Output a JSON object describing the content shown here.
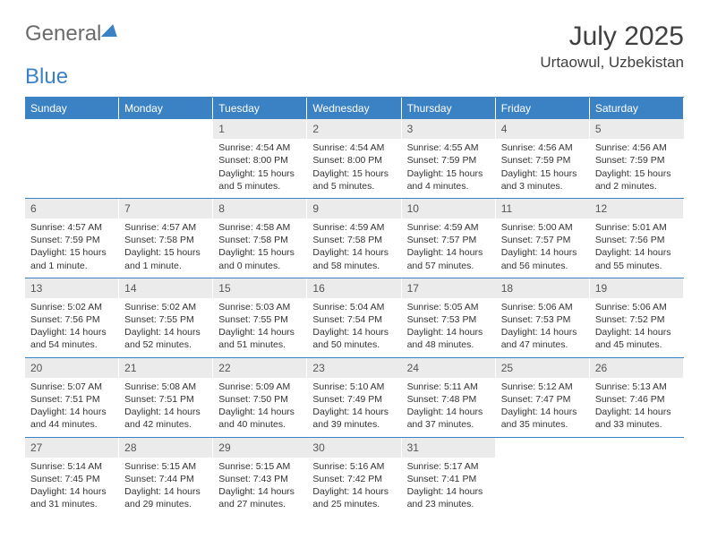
{
  "logo": {
    "part1": "General",
    "part2": "Blue"
  },
  "title": "July 2025",
  "location": "Urtaowul, Uzbekistan",
  "colors": {
    "accent": "#3b82c4",
    "dayNumBg": "#ebebeb",
    "headerText": "#ffffff",
    "bodyText": "#333333"
  },
  "dayHeaders": [
    "Sunday",
    "Monday",
    "Tuesday",
    "Wednesday",
    "Thursday",
    "Friday",
    "Saturday"
  ],
  "weeks": [
    [
      null,
      null,
      {
        "n": "1",
        "sr": "4:54 AM",
        "ss": "8:00 PM",
        "dl": "15 hours and 5 minutes."
      },
      {
        "n": "2",
        "sr": "4:54 AM",
        "ss": "8:00 PM",
        "dl": "15 hours and 5 minutes."
      },
      {
        "n": "3",
        "sr": "4:55 AM",
        "ss": "7:59 PM",
        "dl": "15 hours and 4 minutes."
      },
      {
        "n": "4",
        "sr": "4:56 AM",
        "ss": "7:59 PM",
        "dl": "15 hours and 3 minutes."
      },
      {
        "n": "5",
        "sr": "4:56 AM",
        "ss": "7:59 PM",
        "dl": "15 hours and 2 minutes."
      }
    ],
    [
      {
        "n": "6",
        "sr": "4:57 AM",
        "ss": "7:59 PM",
        "dl": "15 hours and 1 minute."
      },
      {
        "n": "7",
        "sr": "4:57 AM",
        "ss": "7:58 PM",
        "dl": "15 hours and 1 minute."
      },
      {
        "n": "8",
        "sr": "4:58 AM",
        "ss": "7:58 PM",
        "dl": "15 hours and 0 minutes."
      },
      {
        "n": "9",
        "sr": "4:59 AM",
        "ss": "7:58 PM",
        "dl": "14 hours and 58 minutes."
      },
      {
        "n": "10",
        "sr": "4:59 AM",
        "ss": "7:57 PM",
        "dl": "14 hours and 57 minutes."
      },
      {
        "n": "11",
        "sr": "5:00 AM",
        "ss": "7:57 PM",
        "dl": "14 hours and 56 minutes."
      },
      {
        "n": "12",
        "sr": "5:01 AM",
        "ss": "7:56 PM",
        "dl": "14 hours and 55 minutes."
      }
    ],
    [
      {
        "n": "13",
        "sr": "5:02 AM",
        "ss": "7:56 PM",
        "dl": "14 hours and 54 minutes."
      },
      {
        "n": "14",
        "sr": "5:02 AM",
        "ss": "7:55 PM",
        "dl": "14 hours and 52 minutes."
      },
      {
        "n": "15",
        "sr": "5:03 AM",
        "ss": "7:55 PM",
        "dl": "14 hours and 51 minutes."
      },
      {
        "n": "16",
        "sr": "5:04 AM",
        "ss": "7:54 PM",
        "dl": "14 hours and 50 minutes."
      },
      {
        "n": "17",
        "sr": "5:05 AM",
        "ss": "7:53 PM",
        "dl": "14 hours and 48 minutes."
      },
      {
        "n": "18",
        "sr": "5:06 AM",
        "ss": "7:53 PM",
        "dl": "14 hours and 47 minutes."
      },
      {
        "n": "19",
        "sr": "5:06 AM",
        "ss": "7:52 PM",
        "dl": "14 hours and 45 minutes."
      }
    ],
    [
      {
        "n": "20",
        "sr": "5:07 AM",
        "ss": "7:51 PM",
        "dl": "14 hours and 44 minutes."
      },
      {
        "n": "21",
        "sr": "5:08 AM",
        "ss": "7:51 PM",
        "dl": "14 hours and 42 minutes."
      },
      {
        "n": "22",
        "sr": "5:09 AM",
        "ss": "7:50 PM",
        "dl": "14 hours and 40 minutes."
      },
      {
        "n": "23",
        "sr": "5:10 AM",
        "ss": "7:49 PM",
        "dl": "14 hours and 39 minutes."
      },
      {
        "n": "24",
        "sr": "5:11 AM",
        "ss": "7:48 PM",
        "dl": "14 hours and 37 minutes."
      },
      {
        "n": "25",
        "sr": "5:12 AM",
        "ss": "7:47 PM",
        "dl": "14 hours and 35 minutes."
      },
      {
        "n": "26",
        "sr": "5:13 AM",
        "ss": "7:46 PM",
        "dl": "14 hours and 33 minutes."
      }
    ],
    [
      {
        "n": "27",
        "sr": "5:14 AM",
        "ss": "7:45 PM",
        "dl": "14 hours and 31 minutes."
      },
      {
        "n": "28",
        "sr": "5:15 AM",
        "ss": "7:44 PM",
        "dl": "14 hours and 29 minutes."
      },
      {
        "n": "29",
        "sr": "5:15 AM",
        "ss": "7:43 PM",
        "dl": "14 hours and 27 minutes."
      },
      {
        "n": "30",
        "sr": "5:16 AM",
        "ss": "7:42 PM",
        "dl": "14 hours and 25 minutes."
      },
      {
        "n": "31",
        "sr": "5:17 AM",
        "ss": "7:41 PM",
        "dl": "14 hours and 23 minutes."
      },
      null,
      null
    ]
  ],
  "labels": {
    "sunrise": "Sunrise: ",
    "sunset": "Sunset: ",
    "daylight": "Daylight: "
  }
}
